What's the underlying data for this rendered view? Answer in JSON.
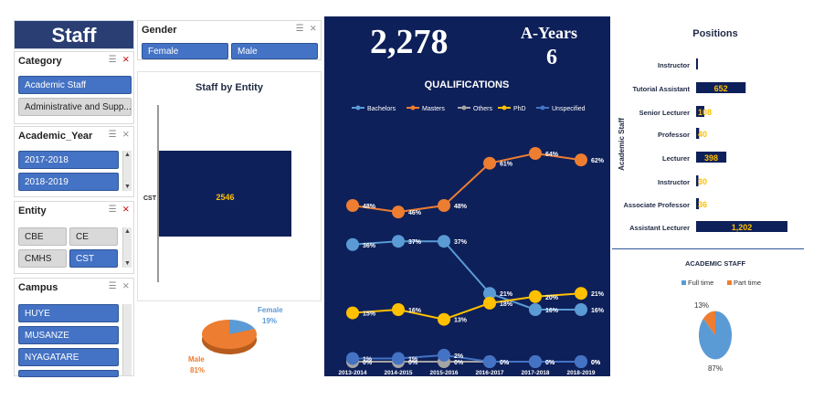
{
  "dashboard": {
    "title": "Staff"
  },
  "slicers": {
    "category": {
      "title": "Category",
      "items": [
        {
          "label": "Academic Staff",
          "selected": true
        },
        {
          "label": "Administrative and Supp...",
          "selected": false
        }
      ]
    },
    "academic_year": {
      "title": "Academic_Year",
      "items": [
        {
          "label": "2017-2018",
          "selected": true
        },
        {
          "label": "2018-2019",
          "selected": true
        }
      ]
    },
    "entity": {
      "title": "Entity",
      "items": [
        {
          "label": "CBE",
          "selected": false
        },
        {
          "label": "CE",
          "selected": false
        },
        {
          "label": "CMHS",
          "selected": false
        },
        {
          "label": "CST",
          "selected": true
        }
      ]
    },
    "campus": {
      "title": "Campus",
      "items": [
        {
          "label": "HUYE",
          "selected": true
        },
        {
          "label": "MUSANZE",
          "selected": true
        },
        {
          "label": "NYAGATARE",
          "selected": true
        }
      ]
    },
    "gender": {
      "title": "Gender",
      "items": [
        {
          "label": "Female",
          "selected": true
        },
        {
          "label": "Male",
          "selected": true
        }
      ]
    }
  },
  "icons": {
    "multi_select": "multi-select-icon",
    "clear_filter": "clear-filter-icon"
  },
  "kpi": {
    "total_staff": "2,278",
    "years_label": "A-Years",
    "years_value": "6"
  },
  "colors": {
    "navy": "#0e2059",
    "gold": "#ffc000",
    "blue": "#4472c4",
    "orange": "#ed7d31",
    "light_blue": "#5b9bd5",
    "grey": "#a5a5a5"
  },
  "chart_data": [
    {
      "type": "bar",
      "title": "Staff by Entity",
      "categories": [
        "CST"
      ],
      "values": [
        2546
      ]
    },
    {
      "type": "pie",
      "title": "",
      "labels": [
        "Female",
        "Male"
      ],
      "values": [
        19,
        81
      ],
      "value_labels": [
        "19%",
        "81%"
      ]
    },
    {
      "type": "line",
      "title": "QUALIFICATIONS",
      "categories": [
        "2013-2014",
        "2014-2015",
        "2015-2016",
        "2016-2017",
        "2017-2018",
        "2018-2019"
      ],
      "series": [
        {
          "name": "Bachelors",
          "values": [
            36,
            37,
            37,
            21,
            16,
            16
          ],
          "labels": [
            "36%",
            "37%",
            "37%",
            "21%",
            "16%",
            "16%"
          ]
        },
        {
          "name": "Masters",
          "values": [
            48,
            46,
            48,
            61,
            64,
            62
          ],
          "labels": [
            "48%",
            "46%",
            "48%",
            "61%",
            "64%",
            "62%"
          ]
        },
        {
          "name": "Others",
          "values": [
            0,
            0,
            0,
            0,
            0,
            0
          ],
          "labels": [
            "0%",
            "0%",
            "0%",
            "0%",
            "0%",
            "0%"
          ]
        },
        {
          "name": "PhD",
          "values": [
            15,
            16,
            13,
            18,
            20,
            21
          ],
          "labels": [
            "15%",
            "16%",
            "13%",
            "18%",
            "20%",
            "21%"
          ]
        },
        {
          "name": "Unspecified",
          "values": [
            1,
            1,
            2,
            0,
            0,
            0
          ],
          "labels": [
            "1%",
            "1%",
            "2%",
            "0%",
            "0%",
            "0%"
          ]
        }
      ],
      "legend": "top"
    },
    {
      "type": "bar",
      "orientation": "horizontal",
      "title": "Positions",
      "ylabel": "Academic Staff",
      "categories": [
        "Instructor",
        "Tutorial Assistant",
        "Senior Lecturer",
        "Professor",
        "Lecturer",
        "Instructor",
        "Associate Professor",
        "Assistant Lecturer"
      ],
      "values": [
        3,
        652,
        108,
        40,
        398,
        30,
        36,
        1202
      ],
      "value_labels": [
        "",
        "652",
        "108",
        "40",
        "398",
        "30",
        "36",
        "1,202"
      ]
    },
    {
      "type": "pie",
      "title": "ACADEMIC STAFF",
      "labels": [
        "Full time",
        "Part time"
      ],
      "values": [
        87,
        13
      ],
      "value_labels": [
        "87%",
        "13%"
      ],
      "legend": "top"
    }
  ]
}
